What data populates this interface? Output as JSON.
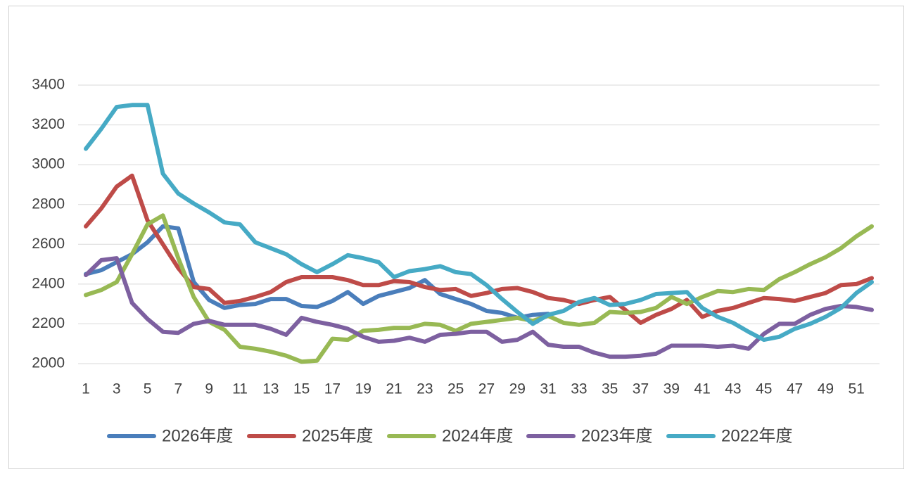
{
  "chart_data": {
    "type": "line",
    "categories": [
      1,
      null,
      3,
      null,
      5,
      null,
      7,
      null,
      9,
      null,
      11,
      null,
      13,
      null,
      15,
      null,
      17,
      null,
      19,
      null,
      21,
      null,
      23,
      null,
      25,
      null,
      27,
      null,
      29,
      null,
      31,
      null,
      33,
      null,
      35,
      null,
      37,
      null,
      39,
      null,
      41,
      null,
      43,
      null,
      45,
      null,
      47,
      null,
      49,
      null,
      51,
      null
    ],
    "ylim": [
      2000,
      3400
    ],
    "yticks": [
      2000,
      2200,
      2400,
      2600,
      2800,
      3000,
      3200,
      3400
    ],
    "grid": true,
    "legend": "bottom",
    "series": [
      {
        "name": "2026年度",
        "color": "#4a7ebb",
        "values": [
          2450,
          2470,
          2510,
          2550,
          2610,
          2690,
          2680,
          2410,
          2320,
          2280,
          2295,
          2300,
          2325,
          2325,
          2290,
          2285,
          2315,
          2360,
          2300,
          2340,
          2360,
          2380,
          2420,
          2350,
          2325,
          2300,
          2265,
          2255,
          2230,
          2245,
          2250,
          null,
          null,
          null,
          null,
          null,
          null,
          null,
          null,
          null,
          null,
          null,
          null,
          null,
          null,
          null,
          null,
          null,
          null,
          null,
          null,
          null
        ]
      },
      {
        "name": "2025年度",
        "color": "#be4b48",
        "values": [
          2690,
          2780,
          2890,
          2945,
          2720,
          2600,
          2480,
          2385,
          2375,
          2305,
          2315,
          2335,
          2360,
          2410,
          2435,
          2435,
          2435,
          2420,
          2395,
          2395,
          2415,
          2410,
          2385,
          2370,
          2375,
          2340,
          2355,
          2375,
          2380,
          2360,
          2330,
          2320,
          2300,
          2320,
          2335,
          2270,
          2205,
          2245,
          2275,
          2320,
          2235,
          2265,
          2280,
          2305,
          2330,
          2325,
          2315,
          2335,
          2355,
          2395,
          2400,
          2430
        ]
      },
      {
        "name": "2024年度",
        "color": "#98b954",
        "values": [
          2345,
          2370,
          2410,
          2550,
          2700,
          2745,
          2530,
          2335,
          2210,
          2170,
          2085,
          2075,
          2060,
          2040,
          2010,
          2015,
          2125,
          2120,
          2165,
          2170,
          2180,
          2180,
          2200,
          2195,
          2165,
          2200,
          2210,
          2220,
          2230,
          2215,
          2240,
          2205,
          2195,
          2205,
          2260,
          2255,
          2260,
          2280,
          2335,
          2300,
          2335,
          2365,
          2360,
          2375,
          2370,
          2425,
          2460,
          2500,
          2535,
          2580,
          2640,
          2690
        ]
      },
      {
        "name": "2023年度",
        "color": "#7d60a0",
        "values": [
          2445,
          2520,
          2530,
          2305,
          2225,
          2160,
          2155,
          2200,
          2215,
          2195,
          2195,
          2195,
          2175,
          2145,
          2230,
          2210,
          2195,
          2175,
          2135,
          2110,
          2115,
          2130,
          2110,
          2145,
          2150,
          2160,
          2160,
          2110,
          2120,
          2160,
          2095,
          2085,
          2085,
          2055,
          2035,
          2035,
          2040,
          2050,
          2090,
          2090,
          2090,
          2085,
          2090,
          2075,
          2150,
          2200,
          2200,
          2245,
          2275,
          2290,
          2285,
          2270
        ]
      },
      {
        "name": "2022年度",
        "color": "#46aac5",
        "values": [
          3080,
          3180,
          3290,
          3300,
          3300,
          2955,
          2855,
          2805,
          2760,
          2710,
          2700,
          2610,
          2580,
          2550,
          2500,
          2460,
          2500,
          2545,
          2530,
          2510,
          2435,
          2465,
          2475,
          2490,
          2460,
          2450,
          2395,
          2325,
          2260,
          2200,
          2245,
          2265,
          2310,
          2330,
          2295,
          2300,
          2320,
          2350,
          2355,
          2360,
          2280,
          2235,
          2205,
          2160,
          2120,
          2135,
          2175,
          2200,
          2235,
          2280,
          2355,
          2410
        ]
      }
    ]
  }
}
